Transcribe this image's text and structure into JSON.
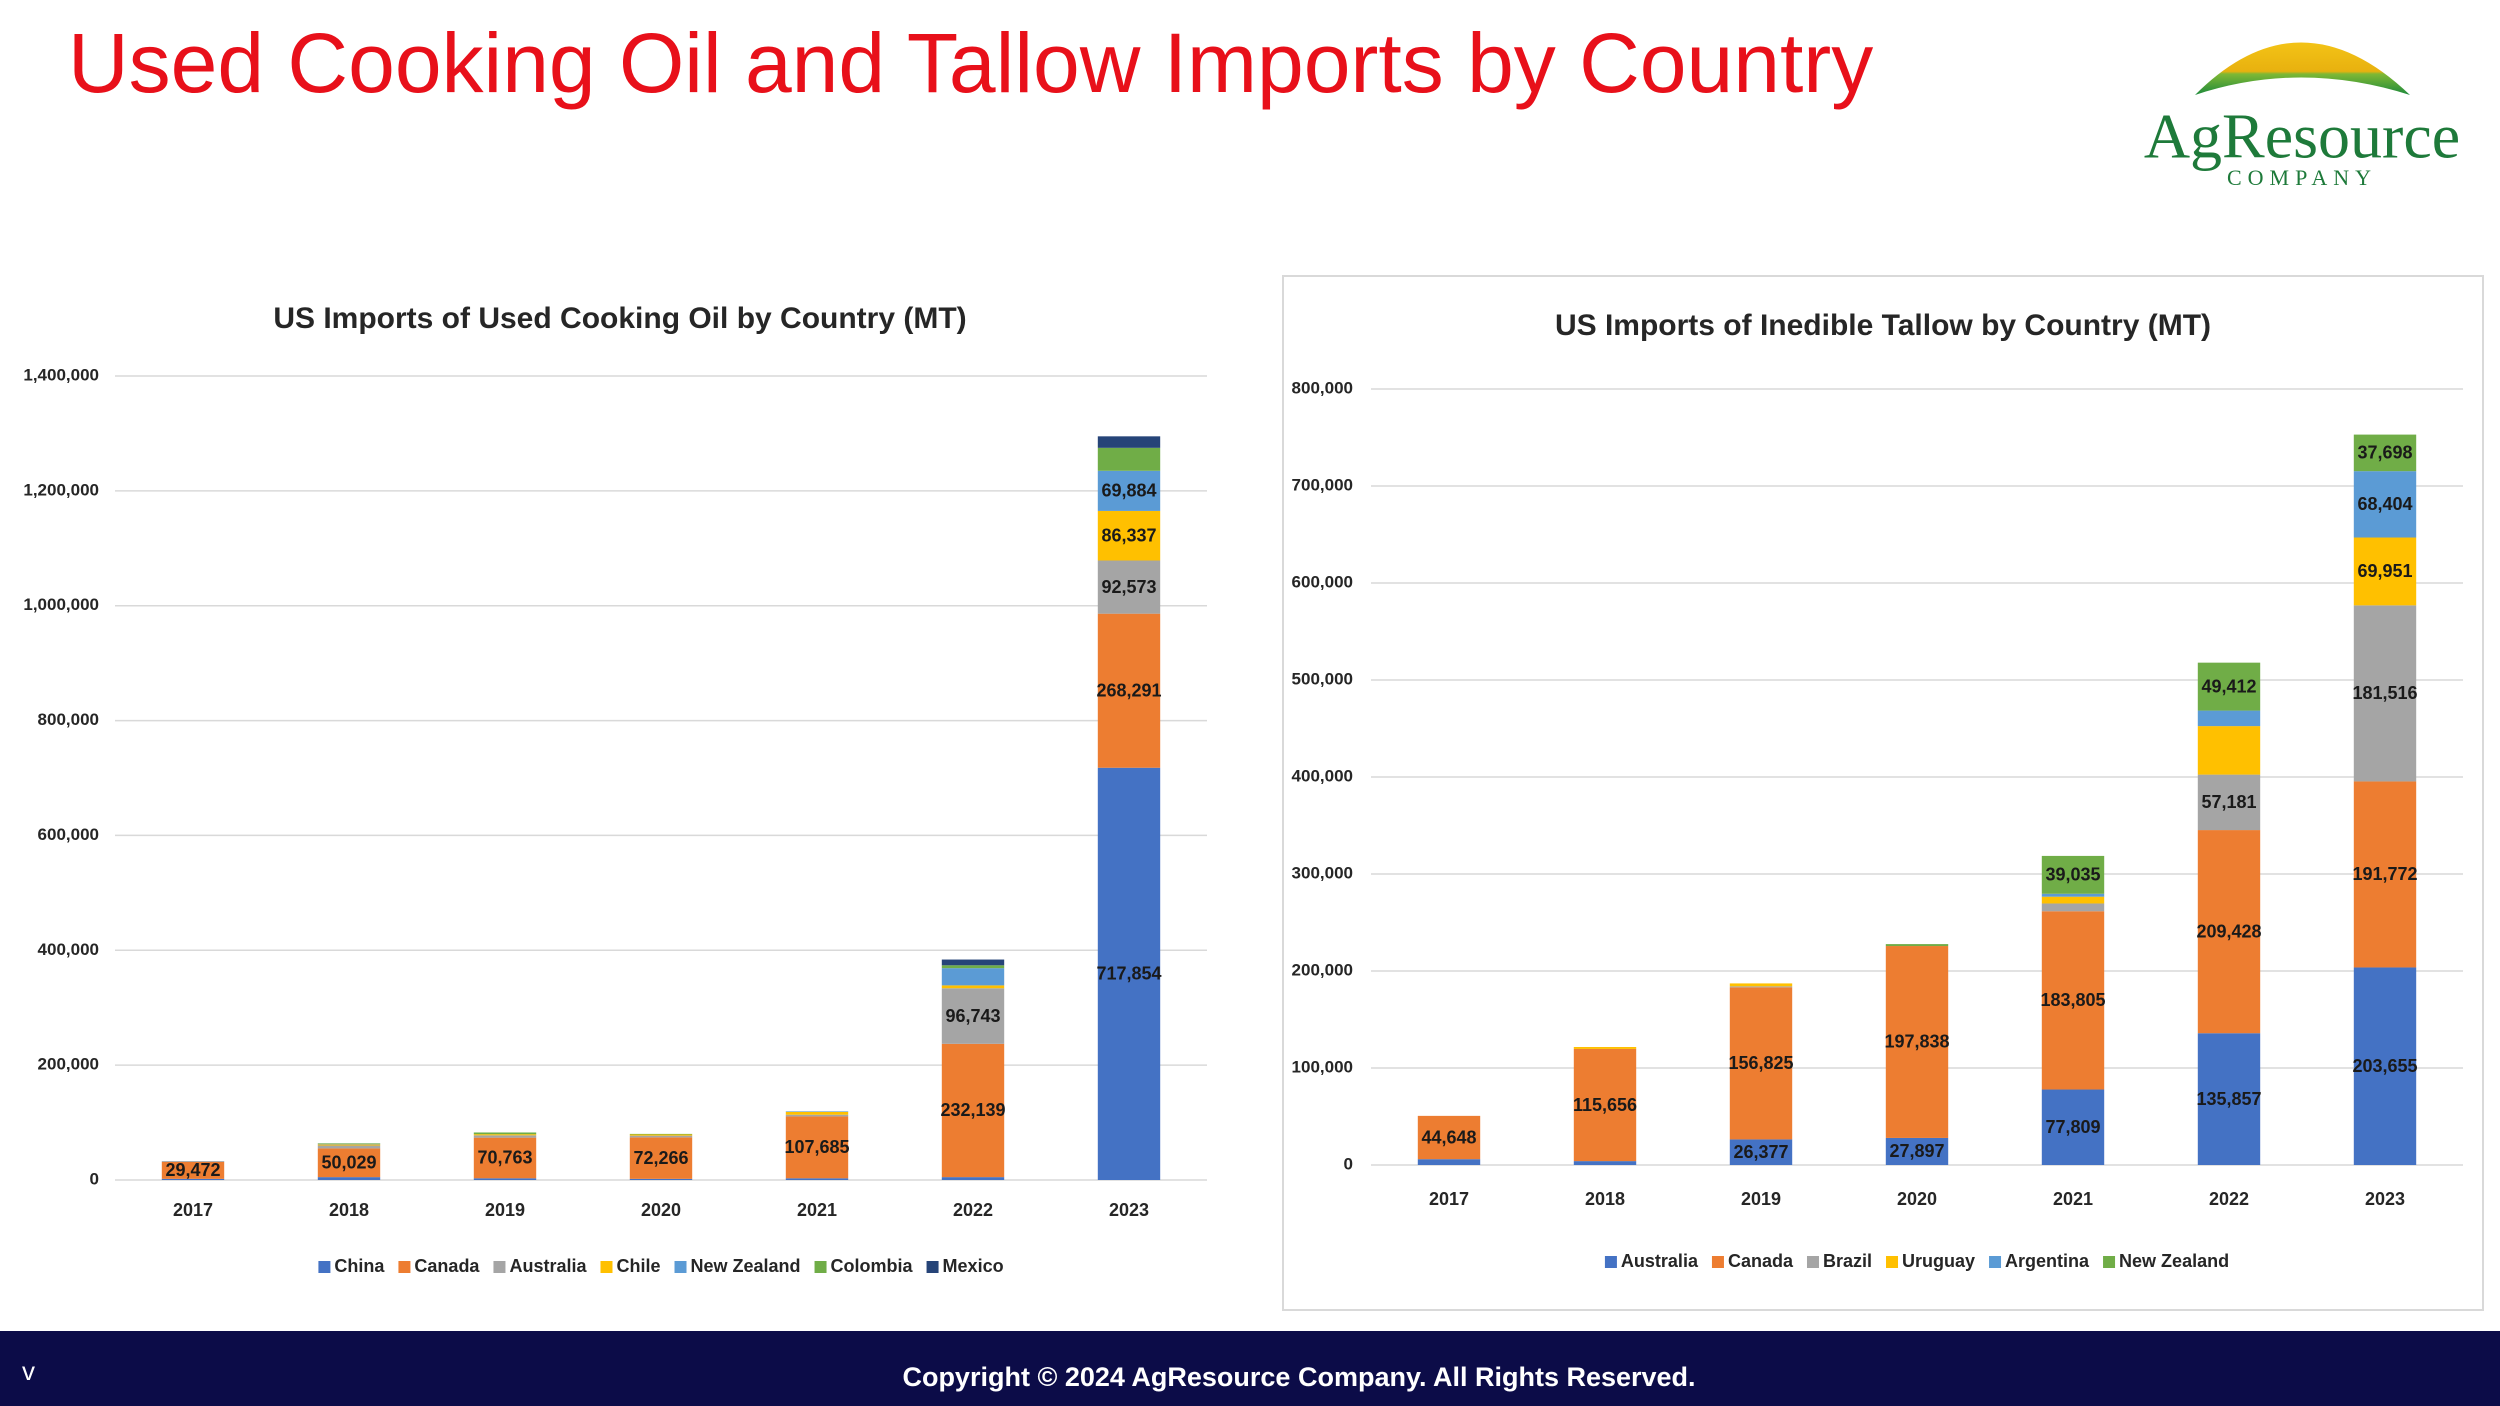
{
  "header": {
    "title": "Used Cooking Oil and Tallow Imports by Country"
  },
  "logo": {
    "name": "AgResource",
    "subtitle": "COMPANY"
  },
  "footer": {
    "corner": "v",
    "copyright": "Copyright © 2024 AgResource Company. All Rights Reserved."
  },
  "chart_data": [
    {
      "type": "stacked_bar",
      "title": "US Imports of Used Cooking Oil by Country (MT)",
      "categories": [
        "2017",
        "2018",
        "2019",
        "2020",
        "2021",
        "2022",
        "2023"
      ],
      "ylim": [
        0,
        1400000
      ],
      "yticks": [
        0,
        {
          "value": 200000,
          "label": "200,000"
        },
        {
          "value": 400000,
          "label": "400,000"
        },
        {
          "value": 600000,
          "label": "600,000"
        },
        {
          "value": 800000,
          "label": "800,000"
        },
        {
          "value": 1000000,
          "label": "1,000,000"
        },
        {
          "value": 1200000,
          "label": "1,200,000"
        },
        {
          "value": 1400000,
          "label": "1,400,000"
        }
      ],
      "grid": true,
      "legend": "bottom",
      "series": [
        {
          "name": "China",
          "color": "#4472c4",
          "values": [
            2000,
            5000,
            3000,
            2000,
            3000,
            5000,
            717854
          ],
          "value_labels": [
            null,
            null,
            null,
            null,
            null,
            null,
            "717,854"
          ]
        },
        {
          "name": "Canada",
          "color": "#ed7d31",
          "values": [
            29472,
            50029,
            70763,
            72266,
            107685,
            232139,
            268291
          ],
          "value_labels": [
            "29,472",
            "50,029",
            "70,763",
            "72,266",
            "107,685",
            "232,139",
            "268,291"
          ]
        },
        {
          "name": "Australia",
          "color": "#a5a5a5",
          "values": [
            1500,
            5000,
            4000,
            3000,
            3000,
            96743,
            92573
          ],
          "value_labels": [
            null,
            null,
            null,
            null,
            null,
            "96,743",
            "92,573"
          ]
        },
        {
          "name": "Chile",
          "color": "#ffc000",
          "values": [
            0,
            2000,
            2000,
            2000,
            5000,
            5000,
            86337
          ],
          "value_labels": [
            null,
            null,
            null,
            null,
            null,
            null,
            "86,337"
          ]
        },
        {
          "name": "New Zealand",
          "color": "#5b9bd5",
          "values": [
            0,
            1000,
            0,
            0,
            1000,
            30000,
            69884
          ],
          "value_labels": [
            null,
            null,
            null,
            null,
            null,
            null,
            "69,884"
          ]
        },
        {
          "name": "Colombia",
          "color": "#70ad47",
          "values": [
            0,
            1000,
            3000,
            1000,
            0,
            5000,
            40000
          ]
        },
        {
          "name": "Mexico",
          "color": "#264478",
          "values": [
            0,
            0,
            0,
            0,
            0,
            10000,
            20000
          ]
        }
      ]
    },
    {
      "type": "stacked_bar",
      "title": "US Imports of Inedible Tallow by Country (MT)",
      "categories": [
        "2017",
        "2018",
        "2019",
        "2020",
        "2021",
        "2022",
        "2023"
      ],
      "ylim": [
        0,
        800000
      ],
      "yticks": [
        0,
        {
          "value": 100000,
          "label": "100,000"
        },
        {
          "value": 200000,
          "label": "200,000"
        },
        {
          "value": 300000,
          "label": "300,000"
        },
        {
          "value": 400000,
          "label": "400,000"
        },
        {
          "value": 500000,
          "label": "500,000"
        },
        {
          "value": 600000,
          "label": "600,000"
        },
        {
          "value": 700000,
          "label": "700,000"
        },
        {
          "value": 800000,
          "label": "800,000"
        }
      ],
      "grid": true,
      "legend": "bottom",
      "series": [
        {
          "name": "Australia",
          "color": "#4472c4",
          "values": [
            6000,
            4000,
            26377,
            27897,
            77809,
            135857,
            203655
          ],
          "value_labels": [
            null,
            null,
            "26,377",
            "27,897",
            "77,809",
            "135,857",
            "203,655"
          ]
        },
        {
          "name": "Canada",
          "color": "#ed7d31",
          "values": [
            44648,
            115656,
            156825,
            197838,
            183805,
            209428,
            191772
          ],
          "value_labels": [
            "44,648",
            "115,656",
            "156,825",
            "197,838",
            "183,805",
            "209,428",
            "191,772"
          ]
        },
        {
          "name": "Brazil",
          "color": "#a5a5a5",
          "values": [
            0,
            0,
            1000,
            0,
            8000,
            57181,
            181516
          ],
          "value_labels": [
            null,
            null,
            null,
            null,
            null,
            "57,181",
            "181,516"
          ]
        },
        {
          "name": "Uruguay",
          "color": "#ffc000",
          "values": [
            0,
            2000,
            3000,
            0,
            7000,
            50000,
            69951
          ],
          "value_labels": [
            null,
            null,
            null,
            null,
            null,
            null,
            "69,951"
          ]
        },
        {
          "name": "Argentina",
          "color": "#5b9bd5",
          "values": [
            0,
            0,
            0,
            0,
            3000,
            16000,
            68404
          ],
          "value_labels": [
            null,
            null,
            null,
            null,
            null,
            null,
            "68,404"
          ]
        },
        {
          "name": "New Zealand",
          "color": "#70ad47",
          "values": [
            0,
            0,
            0,
            2000,
            39035,
            49412,
            37698
          ],
          "value_labels": [
            null,
            null,
            null,
            null,
            "39,035",
            "49,412",
            "37,698"
          ]
        }
      ]
    }
  ]
}
